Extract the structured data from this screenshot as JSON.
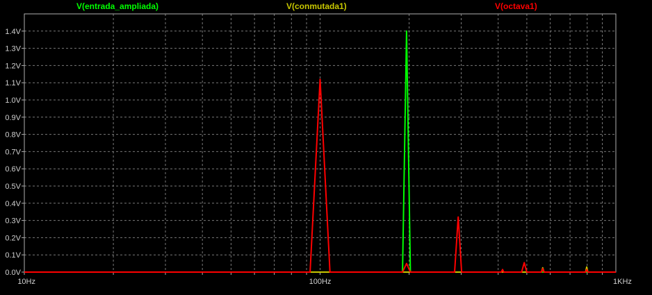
{
  "chart_data": {
    "type": "line",
    "title": "",
    "xlabel": "",
    "ylabel": "",
    "x_scale": "log",
    "xlim": [
      10,
      1000
    ],
    "ylim": [
      0,
      1.5
    ],
    "grid": true,
    "legend_position": "top",
    "x_tick_labels": [
      {
        "value": 10,
        "label": "10Hz"
      },
      {
        "value": 100,
        "label": "100Hz"
      },
      {
        "value": 1000,
        "label": "1KHz"
      }
    ],
    "y_tick_labels": [
      {
        "value": 0.0,
        "label": "0.0V"
      },
      {
        "value": 0.1,
        "label": "0.1V"
      },
      {
        "value": 0.2,
        "label": "0.2V"
      },
      {
        "value": 0.3,
        "label": "0.3V"
      },
      {
        "value": 0.4,
        "label": "0.4V"
      },
      {
        "value": 0.5,
        "label": "0.5V"
      },
      {
        "value": 0.6,
        "label": "0.6V"
      },
      {
        "value": 0.7,
        "label": "0.7V"
      },
      {
        "value": 0.8,
        "label": "0.8V"
      },
      {
        "value": 0.9,
        "label": "0.9V"
      },
      {
        "value": 1.0,
        "label": "1.0V"
      },
      {
        "value": 1.1,
        "label": "1.1V"
      },
      {
        "value": 1.2,
        "label": "1.2V"
      },
      {
        "value": 1.3,
        "label": "1.3V"
      },
      {
        "value": 1.4,
        "label": "1.4V"
      }
    ],
    "series": [
      {
        "name": "V(entrada_ampliada)",
        "color": "#00ff00",
        "points": [
          [
            10,
            0
          ],
          [
            190,
            0
          ],
          [
            196,
            1.4
          ],
          [
            202,
            0
          ],
          [
            1000,
            0
          ]
        ]
      },
      {
        "name": "V(conmutada1)",
        "color": "#c8c800",
        "points": [
          [
            10,
            0
          ],
          [
            560,
            0
          ],
          [
            566,
            0.025
          ],
          [
            572,
            0
          ],
          [
            790,
            0
          ],
          [
            797,
            0.03
          ],
          [
            804,
            0
          ],
          [
            1000,
            0
          ]
        ]
      },
      {
        "name": "V(octava1)",
        "color": "#ff0000",
        "points": [
          [
            10,
            0
          ],
          [
            92.5,
            0
          ],
          [
            100,
            1.12
          ],
          [
            108,
            0
          ],
          [
            190,
            0
          ],
          [
            196,
            0.05
          ],
          [
            202,
            0
          ],
          [
            285,
            0
          ],
          [
            293,
            0.32
          ],
          [
            301,
            0
          ],
          [
            410,
            0
          ],
          [
            414,
            0.015
          ],
          [
            418,
            0
          ],
          [
            480,
            0
          ],
          [
            490,
            0.055
          ],
          [
            500,
            0
          ],
          [
            560,
            0
          ],
          [
            566,
            0.02
          ],
          [
            572,
            0
          ],
          [
            790,
            0
          ],
          [
            797,
            0.015
          ],
          [
            804,
            0
          ],
          [
            1000,
            0
          ]
        ]
      }
    ]
  }
}
